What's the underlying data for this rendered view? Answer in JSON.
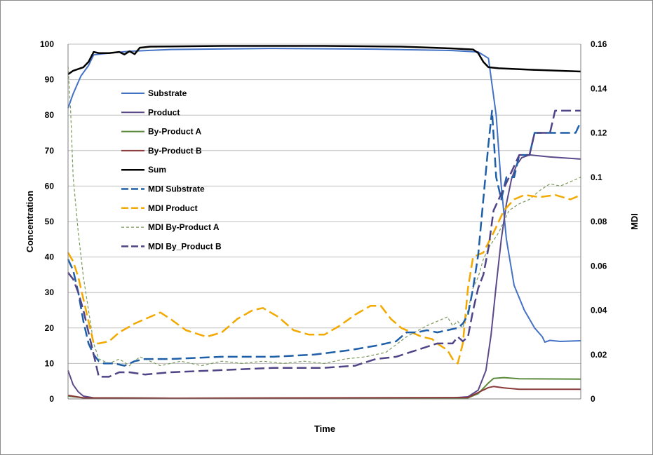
{
  "chart_data": {
    "type": "line",
    "title": "",
    "xlabel": "Time",
    "ylabel": "Concentration",
    "y2label": "MDI",
    "ylim": [
      0,
      100
    ],
    "y2lim": [
      0,
      0.16
    ],
    "yticks": [
      "0",
      "10",
      "20",
      "30",
      "40",
      "50",
      "60",
      "70",
      "80",
      "90",
      "100"
    ],
    "y2ticks": [
      "0",
      "0.02",
      "0.04",
      "0.06",
      "0.08",
      "0.1",
      "0.12",
      "0.14",
      "0.16"
    ],
    "grid": true,
    "legend_position": "upper-left inside plot",
    "x_domain": [
      0,
      100
    ],
    "series": [
      {
        "name": "Substrate",
        "axis": "left",
        "color": "#4472c4",
        "style": "solid",
        "width": 2,
        "points": [
          [
            0,
            82
          ],
          [
            1,
            86
          ],
          [
            2.5,
            91
          ],
          [
            4,
            94
          ],
          [
            5,
            97
          ],
          [
            8,
            97.5
          ],
          [
            12,
            98
          ],
          [
            20,
            98.5
          ],
          [
            40,
            98.8
          ],
          [
            60,
            98.6
          ],
          [
            75,
            98.2
          ],
          [
            80,
            97.8
          ],
          [
            82,
            96
          ],
          [
            83.5,
            80
          ],
          [
            84.5,
            60
          ],
          [
            85.5,
            45
          ],
          [
            87,
            32
          ],
          [
            89,
            25
          ],
          [
            91,
            20
          ],
          [
            92.5,
            17.5
          ],
          [
            93,
            16
          ],
          [
            94,
            16.5
          ],
          [
            96,
            16.2
          ],
          [
            100,
            16.4
          ]
        ]
      },
      {
        "name": "Product",
        "axis": "left",
        "color": "#5b4a8a",
        "style": "solid",
        "width": 2,
        "points": [
          [
            0,
            8
          ],
          [
            1,
            4
          ],
          [
            2,
            2
          ],
          [
            3,
            0.8
          ],
          [
            5,
            0.3
          ],
          [
            20,
            0.2
          ],
          [
            50,
            0.2
          ],
          [
            75,
            0.3
          ],
          [
            78,
            0.6
          ],
          [
            80,
            2.5
          ],
          [
            81.5,
            8
          ],
          [
            82.5,
            18
          ],
          [
            83.5,
            32
          ],
          [
            84.5,
            45
          ],
          [
            85.5,
            55
          ],
          [
            86.5,
            62
          ],
          [
            87.5,
            66
          ],
          [
            88.5,
            68
          ],
          [
            90,
            68.8
          ],
          [
            94,
            68.2
          ],
          [
            100,
            67.6
          ]
        ]
      },
      {
        "name": "By-Product A",
        "axis": "left",
        "color": "#5c8a3c",
        "style": "solid",
        "width": 2,
        "points": [
          [
            0,
            0.8
          ],
          [
            3,
            0.3
          ],
          [
            20,
            0.2
          ],
          [
            78,
            0.3
          ],
          [
            80,
            1.5
          ],
          [
            82,
            4.5
          ],
          [
            83,
            5.8
          ],
          [
            85,
            6
          ],
          [
            88,
            5.7
          ],
          [
            100,
            5.6
          ]
        ]
      },
      {
        "name": "By-Product B",
        "axis": "left",
        "color": "#8b3a3a",
        "style": "solid",
        "width": 2,
        "points": [
          [
            0,
            1
          ],
          [
            3,
            0.3
          ],
          [
            20,
            0.2
          ],
          [
            78,
            0.4
          ],
          [
            80,
            1.8
          ],
          [
            82,
            3.2
          ],
          [
            83,
            3.5
          ],
          [
            85,
            3.1
          ],
          [
            88,
            2.7
          ],
          [
            100,
            2.7
          ]
        ]
      },
      {
        "name": "Sum",
        "axis": "left",
        "color": "#000000",
        "style": "solid",
        "width": 2.5,
        "points": [
          [
            0,
            91.5
          ],
          [
            1,
            92.5
          ],
          [
            2,
            93
          ],
          [
            3,
            93.5
          ],
          [
            4,
            95
          ],
          [
            5,
            97.8
          ],
          [
            6,
            97.5
          ],
          [
            8,
            97.5
          ],
          [
            10,
            97.8
          ],
          [
            11,
            97.1
          ],
          [
            12,
            98
          ],
          [
            13,
            97.2
          ],
          [
            14,
            99
          ],
          [
            16,
            99.3
          ],
          [
            30,
            99.5
          ],
          [
            50,
            99.5
          ],
          [
            65,
            99.3
          ],
          [
            75,
            98.8
          ],
          [
            79,
            98.5
          ],
          [
            80,
            97.5
          ],
          [
            81,
            95
          ],
          [
            82,
            93.5
          ],
          [
            84,
            93.2
          ],
          [
            90,
            92.8
          ],
          [
            100,
            92.3
          ]
        ]
      },
      {
        "name": "MDI Substrate",
        "axis": "right",
        "color": "#1f5fa8",
        "style": "longdash",
        "width": 2.5,
        "points": [
          [
            0,
            0.063
          ],
          [
            1,
            0.058
          ],
          [
            2,
            0.048
          ],
          [
            3,
            0.035
          ],
          [
            4,
            0.025
          ],
          [
            5,
            0.02
          ],
          [
            6,
            0.017
          ],
          [
            7,
            0.016
          ],
          [
            9,
            0.016
          ],
          [
            11,
            0.015
          ],
          [
            13,
            0.017
          ],
          [
            15,
            0.018
          ],
          [
            20,
            0.018
          ],
          [
            30,
            0.019
          ],
          [
            40,
            0.019
          ],
          [
            48,
            0.02
          ],
          [
            55,
            0.022
          ],
          [
            60,
            0.024
          ],
          [
            64,
            0.026
          ],
          [
            66,
            0.03
          ],
          [
            68,
            0.03
          ],
          [
            70,
            0.031
          ],
          [
            72,
            0.03
          ],
          [
            74,
            0.031
          ],
          [
            76,
            0.032
          ],
          [
            77,
            0.034
          ],
          [
            78,
            0.038
          ],
          [
            79,
            0.05
          ],
          [
            80,
            0.065
          ],
          [
            81,
            0.09
          ],
          [
            82,
            0.115
          ],
          [
            82.7,
            0.13
          ],
          [
            83.5,
            0.1
          ],
          [
            84.5,
            0.09
          ],
          [
            85.5,
            0.1
          ],
          [
            87,
            0.1
          ],
          [
            88,
            0.11
          ],
          [
            90,
            0.11
          ],
          [
            91,
            0.12
          ],
          [
            94,
            0.12
          ],
          [
            96,
            0.12
          ],
          [
            99,
            0.12
          ],
          [
            100,
            0.125
          ]
        ]
      },
      {
        "name": "MDI Product",
        "axis": "right",
        "color": "#f2a900",
        "style": "longdash",
        "width": 2.5,
        "points": [
          [
            0,
            0.066
          ],
          [
            1,
            0.062
          ],
          [
            2,
            0.055
          ],
          [
            3,
            0.045
          ],
          [
            4,
            0.035
          ],
          [
            5,
            0.025
          ],
          [
            6,
            0.025
          ],
          [
            8,
            0.026
          ],
          [
            10,
            0.03
          ],
          [
            13,
            0.034
          ],
          [
            16,
            0.037
          ],
          [
            18,
            0.039
          ],
          [
            20,
            0.036
          ],
          [
            23,
            0.031
          ],
          [
            27,
            0.028
          ],
          [
            30,
            0.03
          ],
          [
            33,
            0.036
          ],
          [
            36,
            0.04
          ],
          [
            38,
            0.041
          ],
          [
            41,
            0.037
          ],
          [
            44,
            0.031
          ],
          [
            47,
            0.029
          ],
          [
            50,
            0.029
          ],
          [
            53,
            0.033
          ],
          [
            56,
            0.038
          ],
          [
            59,
            0.042
          ],
          [
            61,
            0.042
          ],
          [
            63,
            0.036
          ],
          [
            65,
            0.032
          ],
          [
            67,
            0.03
          ],
          [
            69,
            0.028
          ],
          [
            71,
            0.027
          ],
          [
            72,
            0.025
          ],
          [
            74,
            0.022
          ],
          [
            75,
            0.018
          ],
          [
            76,
            0.016
          ],
          [
            77,
            0.025
          ],
          [
            78,
            0.05
          ],
          [
            79,
            0.064
          ],
          [
            81,
            0.066
          ],
          [
            83,
            0.075
          ],
          [
            85,
            0.085
          ],
          [
            87,
            0.09
          ],
          [
            89,
            0.092
          ],
          [
            92,
            0.091
          ],
          [
            95,
            0.092
          ],
          [
            98,
            0.09
          ],
          [
            100,
            0.092
          ]
        ]
      },
      {
        "name": "MDI By-Product A",
        "axis": "right",
        "color": "#7a9a5a",
        "style": "shortdash",
        "width": 1.2,
        "points": [
          [
            0,
            0.15
          ],
          [
            0.5,
            0.13
          ],
          [
            1,
            0.1
          ],
          [
            2,
            0.075
          ],
          [
            3,
            0.055
          ],
          [
            4,
            0.04
          ],
          [
            5,
            0.025
          ],
          [
            6,
            0.018
          ],
          [
            8,
            0.016
          ],
          [
            10,
            0.018
          ],
          [
            12,
            0.015
          ],
          [
            14,
            0.019
          ],
          [
            16,
            0.017
          ],
          [
            18,
            0.015
          ],
          [
            22,
            0.017
          ],
          [
            26,
            0.015
          ],
          [
            30,
            0.017
          ],
          [
            34,
            0.016
          ],
          [
            38,
            0.017
          ],
          [
            42,
            0.016
          ],
          [
            46,
            0.017
          ],
          [
            50,
            0.016
          ],
          [
            54,
            0.018
          ],
          [
            58,
            0.019
          ],
          [
            62,
            0.021
          ],
          [
            66,
            0.028
          ],
          [
            70,
            0.033
          ],
          [
            72,
            0.035
          ],
          [
            74,
            0.037
          ],
          [
            75,
            0.033
          ],
          [
            76,
            0.035
          ],
          [
            77,
            0.032
          ],
          [
            78,
            0.04
          ],
          [
            79,
            0.05
          ],
          [
            80,
            0.055
          ],
          [
            81,
            0.063
          ],
          [
            82,
            0.068
          ],
          [
            84,
            0.075
          ],
          [
            86,
            0.085
          ],
          [
            88,
            0.088
          ],
          [
            90,
            0.09
          ],
          [
            92,
            0.094
          ],
          [
            94,
            0.097
          ],
          [
            96,
            0.096
          ],
          [
            98,
            0.098
          ],
          [
            100,
            0.1
          ]
        ]
      },
      {
        "name": "MDI By_Product B",
        "axis": "right",
        "color": "#4f4486",
        "style": "longdash",
        "width": 2.5,
        "points": [
          [
            0,
            0.057
          ],
          [
            1,
            0.054
          ],
          [
            2,
            0.048
          ],
          [
            3,
            0.04
          ],
          [
            4,
            0.03
          ],
          [
            5,
            0.02
          ],
          [
            6,
            0.01
          ],
          [
            8,
            0.01
          ],
          [
            10,
            0.012
          ],
          [
            12,
            0.012
          ],
          [
            15,
            0.011
          ],
          [
            20,
            0.012
          ],
          [
            30,
            0.013
          ],
          [
            40,
            0.014
          ],
          [
            50,
            0.014
          ],
          [
            56,
            0.015
          ],
          [
            60,
            0.018
          ],
          [
            64,
            0.019
          ],
          [
            68,
            0.022
          ],
          [
            72,
            0.025
          ],
          [
            75,
            0.025
          ],
          [
            76,
            0.028
          ],
          [
            77,
            0.026
          ],
          [
            78,
            0.028
          ],
          [
            79,
            0.04
          ],
          [
            80,
            0.05
          ],
          [
            81,
            0.056
          ],
          [
            82,
            0.068
          ],
          [
            83,
            0.085
          ],
          [
            84,
            0.09
          ],
          [
            86,
            0.1
          ],
          [
            88,
            0.11
          ],
          [
            90,
            0.11
          ],
          [
            91,
            0.12
          ],
          [
            94,
            0.12
          ],
          [
            95,
            0.13
          ],
          [
            100,
            0.13
          ]
        ]
      }
    ]
  }
}
